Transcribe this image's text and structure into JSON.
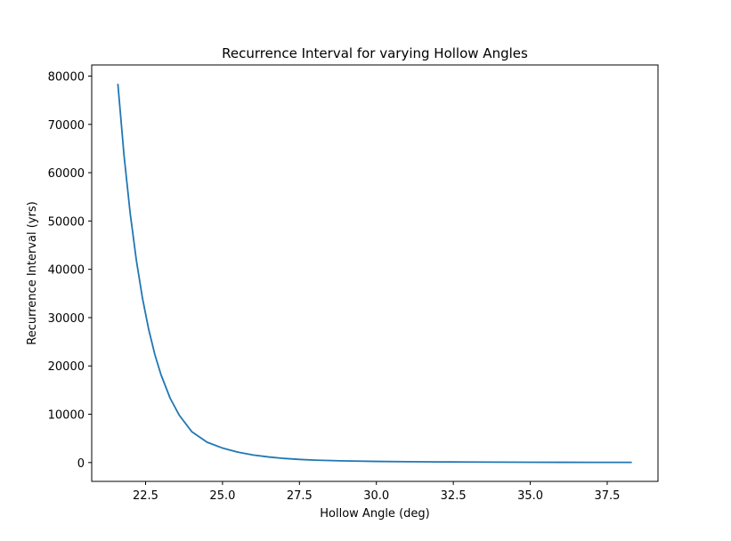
{
  "chart_data": {
    "type": "line",
    "title": "Recurrence Interval for varying Hollow Angles",
    "xlabel": "Hollow Angle (deg)",
    "ylabel": "Recurrence Interval (yrs)",
    "xlim": [
      20.75,
      39.15
    ],
    "ylim": [
      -3900,
      82300
    ],
    "xticks": [
      22.5,
      25.0,
      27.5,
      30.0,
      32.5,
      35.0,
      37.5
    ],
    "xtick_labels": [
      "22.5",
      "25.0",
      "27.5",
      "30.0",
      "32.5",
      "35.0",
      "37.5"
    ],
    "yticks": [
      0,
      10000,
      20000,
      30000,
      40000,
      50000,
      60000,
      70000,
      80000
    ],
    "ytick_labels": [
      "0",
      "10000",
      "20000",
      "30000",
      "40000",
      "50000",
      "60000",
      "70000",
      "80000"
    ],
    "grid": false,
    "series": [
      {
        "color": "#1f77b4",
        "x": [
          21.6,
          21.8,
          22.0,
          22.2,
          22.4,
          22.6,
          22.8,
          23.0,
          23.3,
          23.6,
          24.0,
          24.5,
          25.0,
          25.5,
          26.0,
          26.5,
          27.0,
          27.5,
          28.0,
          29.0,
          30.0,
          31.0,
          32.0,
          33.0,
          34.0,
          35.0,
          36.0,
          37.0,
          38.3
        ],
        "y": [
          78400,
          63600,
          51600,
          41900,
          34000,
          27600,
          22400,
          18200,
          13300,
          9750,
          6400,
          4200,
          3000,
          2150,
          1550,
          1150,
          850,
          650,
          500,
          330,
          230,
          170,
          130,
          100,
          80,
          60,
          50,
          40,
          30
        ]
      }
    ]
  }
}
